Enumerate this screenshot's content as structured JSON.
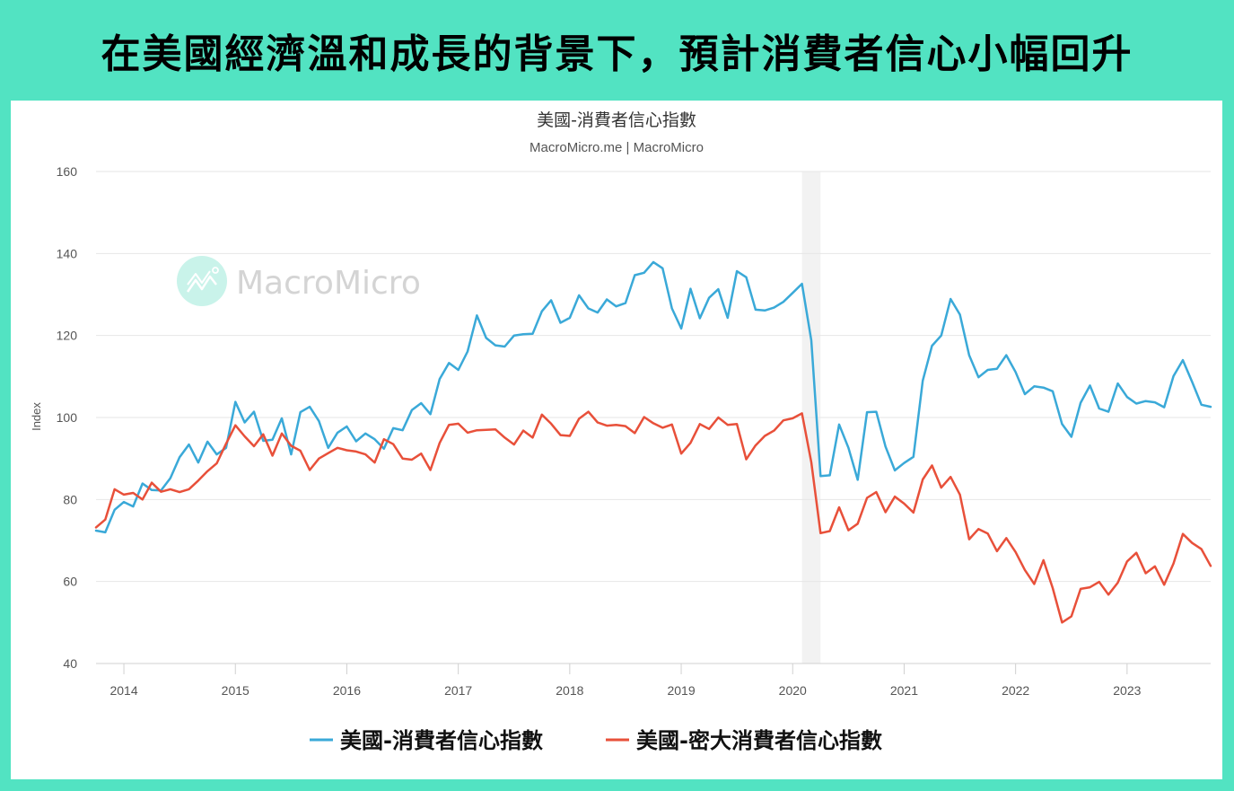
{
  "headline": "在美國經濟溫和成長的背景下，預計消費者信心小幅回升",
  "colors": {
    "background": "#52E3C2",
    "panel": "#FFFFFF",
    "series_consumer_confidence": "#3AA9D8",
    "series_michigan": "#E8503A",
    "gridline": "#E6E6E6",
    "recession_shade": "#F2F2F2",
    "watermark_circle": "#C9F3EA"
  },
  "watermark": {
    "text": "MacroMicro",
    "icon": "chart-logo-icon"
  },
  "chart_data": {
    "type": "line",
    "title": "美國-消費者信心指數",
    "subtitle": "MacroMicro.me | MacroMicro",
    "xlabel": "",
    "ylabel": "Index",
    "ylim": [
      40,
      160
    ],
    "yticks": [
      40,
      60,
      80,
      100,
      120,
      140,
      160
    ],
    "xticks": [
      "2014",
      "2015",
      "2016",
      "2017",
      "2018",
      "2019",
      "2020",
      "2021",
      "2022",
      "2023"
    ],
    "grid": true,
    "legend_position": "bottom",
    "x_start": "2013-10",
    "x_end": "2023-10",
    "frequency": "monthly",
    "shaded_regions": [
      {
        "start": "2020-02",
        "end": "2020-04",
        "label": "recession"
      }
    ],
    "series": [
      {
        "name": "美國-消費者信心指數",
        "color": "#3AA9D8",
        "values": [
          72.4,
          72.0,
          77.5,
          79.4,
          78.3,
          83.9,
          82.3,
          82.2,
          85.2,
          90.3,
          93.4,
          89.0,
          94.1,
          91.0,
          92.6,
          103.8,
          98.8,
          101.4,
          94.3,
          94.6,
          99.8,
          91.0,
          101.3,
          102.6,
          99.1,
          92.6,
          96.3,
          97.8,
          94.2,
          96.1,
          94.7,
          92.4,
          97.4,
          96.9,
          101.8,
          103.5,
          100.8,
          109.4,
          113.3,
          111.6,
          116.1,
          124.9,
          119.4,
          117.6,
          117.3,
          120.0,
          120.3,
          120.4,
          125.9,
          128.6,
          123.1,
          124.3,
          129.8,
          126.6,
          125.6,
          128.8,
          127.1,
          127.9,
          134.7,
          135.3,
          137.9,
          136.4,
          126.6,
          121.7,
          131.4,
          124.2,
          129.2,
          131.3,
          124.3,
          135.7,
          134.2,
          126.3,
          126.1,
          126.8,
          128.2,
          130.4,
          132.6,
          118.8,
          85.7,
          85.9,
          98.3,
          92.6,
          84.8,
          101.3,
          101.4,
          92.9,
          87.1,
          88.9,
          90.4,
          109.0,
          117.5,
          120.0,
          128.9,
          125.1,
          115.2,
          109.8,
          111.6,
          111.9,
          115.2,
          111.1,
          105.7,
          107.6,
          107.3,
          106.4,
          98.4,
          95.3,
          103.6,
          107.8,
          102.2,
          101.4,
          108.3,
          105.0,
          103.4,
          104.0,
          103.7,
          102.5,
          110.1,
          114.0,
          108.7,
          103.1,
          102.6
        ]
      },
      {
        "name": "美國-密大消費者信心指數",
        "color": "#E8503A",
        "values": [
          73.2,
          75.1,
          82.5,
          81.2,
          81.6,
          80.0,
          84.1,
          81.9,
          82.5,
          81.8,
          82.5,
          84.6,
          86.9,
          88.8,
          93.6,
          98.1,
          95.4,
          93.0,
          95.9,
          90.7,
          96.1,
          93.1,
          91.9,
          87.2,
          90.0,
          91.3,
          92.6,
          92.0,
          91.7,
          91.0,
          89.0,
          94.7,
          93.5,
          90.0,
          89.7,
          91.2,
          87.2,
          93.8,
          98.2,
          98.5,
          96.3,
          96.9,
          97.0,
          97.1,
          95.1,
          93.4,
          96.8,
          95.1,
          100.7,
          98.5,
          95.7,
          95.5,
          99.7,
          101.4,
          98.8,
          98.0,
          98.2,
          97.9,
          96.2,
          100.1,
          98.6,
          97.5,
          98.3,
          91.2,
          93.8,
          98.4,
          97.2,
          100.0,
          98.2,
          98.4,
          89.8,
          93.2,
          95.5,
          96.8,
          99.3,
          99.8,
          101.0,
          89.1,
          71.8,
          72.3,
          78.1,
          72.5,
          74.1,
          80.4,
          81.8,
          76.9,
          80.7,
          79.0,
          76.8,
          84.9,
          88.3,
          82.9,
          85.5,
          81.2,
          70.3,
          72.8,
          71.7,
          67.4,
          70.6,
          67.2,
          62.8,
          59.4,
          65.2,
          58.4,
          50.0,
          51.5,
          58.2,
          58.6,
          59.9,
          56.8,
          59.7,
          64.9,
          67.0,
          62.0,
          63.7,
          59.2,
          64.4,
          71.6,
          69.4,
          67.9,
          63.8
        ]
      }
    ]
  },
  "legend": [
    {
      "label": "美國-消費者信心指數",
      "color": "#3AA9D8"
    },
    {
      "label": "美國-密大消費者信心指數",
      "color": "#E8503A"
    }
  ]
}
